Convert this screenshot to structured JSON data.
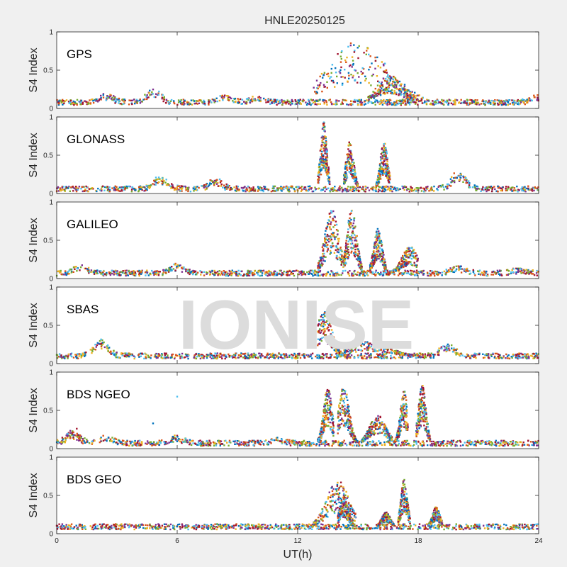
{
  "chart_data": {
    "type": "scatter",
    "title": "HNLE20250125",
    "xlabel": "UT(h)",
    "ylabel": "S4 Index",
    "xlim": [
      0,
      24
    ],
    "ylim": [
      0,
      1
    ],
    "xticks": [
      "0",
      "6",
      "12",
      "18",
      "24"
    ],
    "yticks": [
      "0",
      "0.5",
      "1"
    ],
    "watermark": "IONISE",
    "colors": [
      "#0072BD",
      "#D95319",
      "#EDB120",
      "#7E2F8E",
      "#77AC30",
      "#4DBEEE",
      "#A2142F"
    ],
    "panels": [
      {
        "name": "GPS",
        "baseline": 0.08,
        "bumps": [
          [
            2.5,
            0.17
          ],
          [
            4.8,
            0.25
          ],
          [
            8.4,
            0.16
          ],
          [
            10.0,
            0.14
          ],
          [
            23.9,
            0.15
          ]
        ],
        "bursts": [
          {
            "x0": 12.8,
            "x1": 18.3,
            "peak": 0.88,
            "center": 15.0
          },
          {
            "x0": 15.5,
            "x1": 17.8,
            "peak": 0.45,
            "center": 16.6
          }
        ]
      },
      {
        "name": "GLONASS",
        "baseline": 0.06,
        "bumps": [
          [
            5.2,
            0.22
          ],
          [
            7.9,
            0.18
          ],
          [
            20.0,
            0.28
          ]
        ],
        "bursts": [
          {
            "x0": 13.0,
            "x1": 13.6,
            "peak": 0.95,
            "center": 13.3
          },
          {
            "x0": 14.3,
            "x1": 15.0,
            "peak": 0.68,
            "center": 14.6
          },
          {
            "x0": 15.9,
            "x1": 16.6,
            "peak": 0.68,
            "center": 16.3
          }
        ]
      },
      {
        "name": "GALILEO",
        "baseline": 0.07,
        "bumps": [
          [
            1.2,
            0.16
          ],
          [
            6.0,
            0.18
          ],
          [
            20.0,
            0.15
          ],
          [
            23.0,
            0.12
          ]
        ],
        "bursts": [
          {
            "x0": 13.0,
            "x1": 14.3,
            "peak": 0.9,
            "center": 13.7
          },
          {
            "x0": 14.3,
            "x1": 15.2,
            "peak": 0.93,
            "center": 14.7
          },
          {
            "x0": 15.6,
            "x1": 16.4,
            "peak": 0.65,
            "center": 16.0
          },
          {
            "x0": 16.5,
            "x1": 18.0,
            "peak": 0.42,
            "center": 17.6
          }
        ]
      },
      {
        "name": "SBAS",
        "baseline": 0.1,
        "bumps": [
          [
            2.2,
            0.32
          ],
          [
            19.5,
            0.25
          ]
        ],
        "bursts": [
          {
            "x0": 13.0,
            "x1": 14.5,
            "peak": 0.68,
            "center": 13.3
          },
          {
            "x0": 14.3,
            "x1": 18.0,
            "peak": 0.3,
            "center": 15.5
          }
        ]
      },
      {
        "name": "BDS NGEO",
        "baseline": 0.07,
        "bumps": [
          [
            0.8,
            0.22
          ],
          [
            2.5,
            0.15
          ],
          [
            6.0,
            0.15
          ],
          [
            11.0,
            0.12
          ]
        ],
        "bursts": [
          {
            "x0": 13.0,
            "x1": 13.8,
            "peak": 0.8,
            "center": 13.5
          },
          {
            "x0": 14.0,
            "x1": 15.0,
            "peak": 0.82,
            "center": 14.3
          },
          {
            "x0": 15.2,
            "x1": 16.7,
            "peak": 0.45,
            "center": 16.0
          },
          {
            "x0": 16.8,
            "x1": 17.5,
            "peak": 0.77,
            "center": 17.3
          },
          {
            "x0": 17.9,
            "x1": 18.6,
            "peak": 0.85,
            "center": 18.2
          }
        ],
        "outliers": [
          [
            6.0,
            0.68
          ],
          [
            1.0,
            0.26
          ],
          [
            4.8,
            0.33
          ]
        ]
      },
      {
        "name": "BDS GEO",
        "baseline": 0.09,
        "bumps": [],
        "bursts": [
          {
            "x0": 12.8,
            "x1": 14.9,
            "peak": 0.7,
            "center": 14.0
          },
          {
            "x0": 14.0,
            "x1": 14.8,
            "peak": 0.5,
            "center": 14.3
          },
          {
            "x0": 16.0,
            "x1": 16.8,
            "peak": 0.28,
            "center": 16.4
          },
          {
            "x0": 17.0,
            "x1": 17.6,
            "peak": 0.72,
            "center": 17.3
          },
          {
            "x0": 18.5,
            "x1": 19.2,
            "peak": 0.35,
            "center": 18.9
          }
        ]
      }
    ]
  }
}
